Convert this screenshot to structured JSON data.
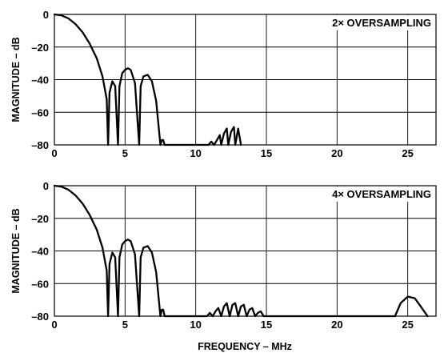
{
  "chart_data": [
    {
      "type": "line",
      "annotation": "2× OVERSAMPLING",
      "ylabel": "MAGNITUDE – dB",
      "xlim": [
        0,
        27
      ],
      "ylim": [
        -80,
        0
      ],
      "xticks": [
        0,
        5,
        10,
        15,
        20,
        25
      ],
      "yticks": [
        0,
        -20,
        -40,
        -60,
        -80
      ],
      "grid": true,
      "series": [
        {
          "x": [
            0,
            0.5,
            1.0,
            1.5,
            2.0,
            2.5,
            3.0,
            3.4,
            3.7,
            3.8,
            3.9,
            4.1,
            4.3,
            4.5,
            4.6,
            4.8,
            5.0,
            5.2,
            5.4,
            5.7,
            6.0,
            6.1,
            6.3,
            6.6,
            6.9,
            7.2,
            7.5,
            7.6,
            7.7,
            7.8,
            10.9,
            11.1,
            11.3,
            11.5,
            11.7,
            11.8,
            12.0,
            12.2,
            12.3,
            12.5,
            12.7,
            12.8,
            13.0,
            13.2
          ],
          "y": [
            0,
            -0.6,
            -2.5,
            -6,
            -11,
            -18,
            -27,
            -38,
            -52,
            -80,
            -48,
            -41,
            -44,
            -80,
            -44,
            -36,
            -34,
            -33,
            -34,
            -42,
            -80,
            -44,
            -38,
            -37,
            -41,
            -53,
            -80,
            -77,
            -77,
            -80,
            -80,
            -78,
            -80,
            -77,
            -74,
            -80,
            -73,
            -70,
            -80,
            -72,
            -69,
            -80,
            -70,
            -80
          ]
        }
      ]
    },
    {
      "type": "line",
      "annotation": "4× OVERSAMPLING",
      "ylabel": "MAGNITUDE – dB",
      "xlabel": "FREQUENCY – MHz",
      "xlim": [
        0,
        27
      ],
      "ylim": [
        -80,
        0
      ],
      "xticks": [
        0,
        5,
        10,
        15,
        20,
        25
      ],
      "yticks": [
        0,
        -20,
        -40,
        -60,
        -80
      ],
      "grid": true,
      "series": [
        {
          "x": [
            0,
            0.5,
            1.0,
            1.5,
            2.0,
            2.5,
            3.0,
            3.4,
            3.7,
            3.8,
            3.9,
            4.1,
            4.3,
            4.5,
            4.6,
            4.8,
            5.0,
            5.2,
            5.4,
            5.7,
            6.0,
            6.1,
            6.3,
            6.6,
            6.9,
            7.2,
            7.5,
            7.6,
            7.7,
            7.8,
            10.8,
            11.0,
            11.2,
            11.4,
            11.6,
            11.8,
            12.0,
            12.2,
            12.4,
            12.6,
            12.8,
            13.0,
            13.2,
            13.4,
            13.6,
            13.8,
            14.0,
            14.2,
            14.4,
            14.6,
            14.8,
            15.0,
            24.1,
            24.5,
            25.0,
            25.5,
            26.0,
            26.4
          ],
          "y": [
            0,
            -0.6,
            -2.5,
            -6,
            -11,
            -18,
            -27,
            -38,
            -52,
            -80,
            -48,
            -41,
            -44,
            -80,
            -44,
            -36,
            -34,
            -33,
            -34,
            -42,
            -80,
            -44,
            -38,
            -37,
            -41,
            -53,
            -80,
            -76,
            -76,
            -80,
            -80,
            -78,
            -80,
            -77,
            -75,
            -80,
            -74,
            -72,
            -80,
            -73,
            -72,
            -80,
            -74,
            -73,
            -80,
            -76,
            -75,
            -80,
            -78,
            -77,
            -80,
            -80,
            -80,
            -72,
            -68,
            -69,
            -75,
            -80
          ]
        }
      ]
    }
  ]
}
